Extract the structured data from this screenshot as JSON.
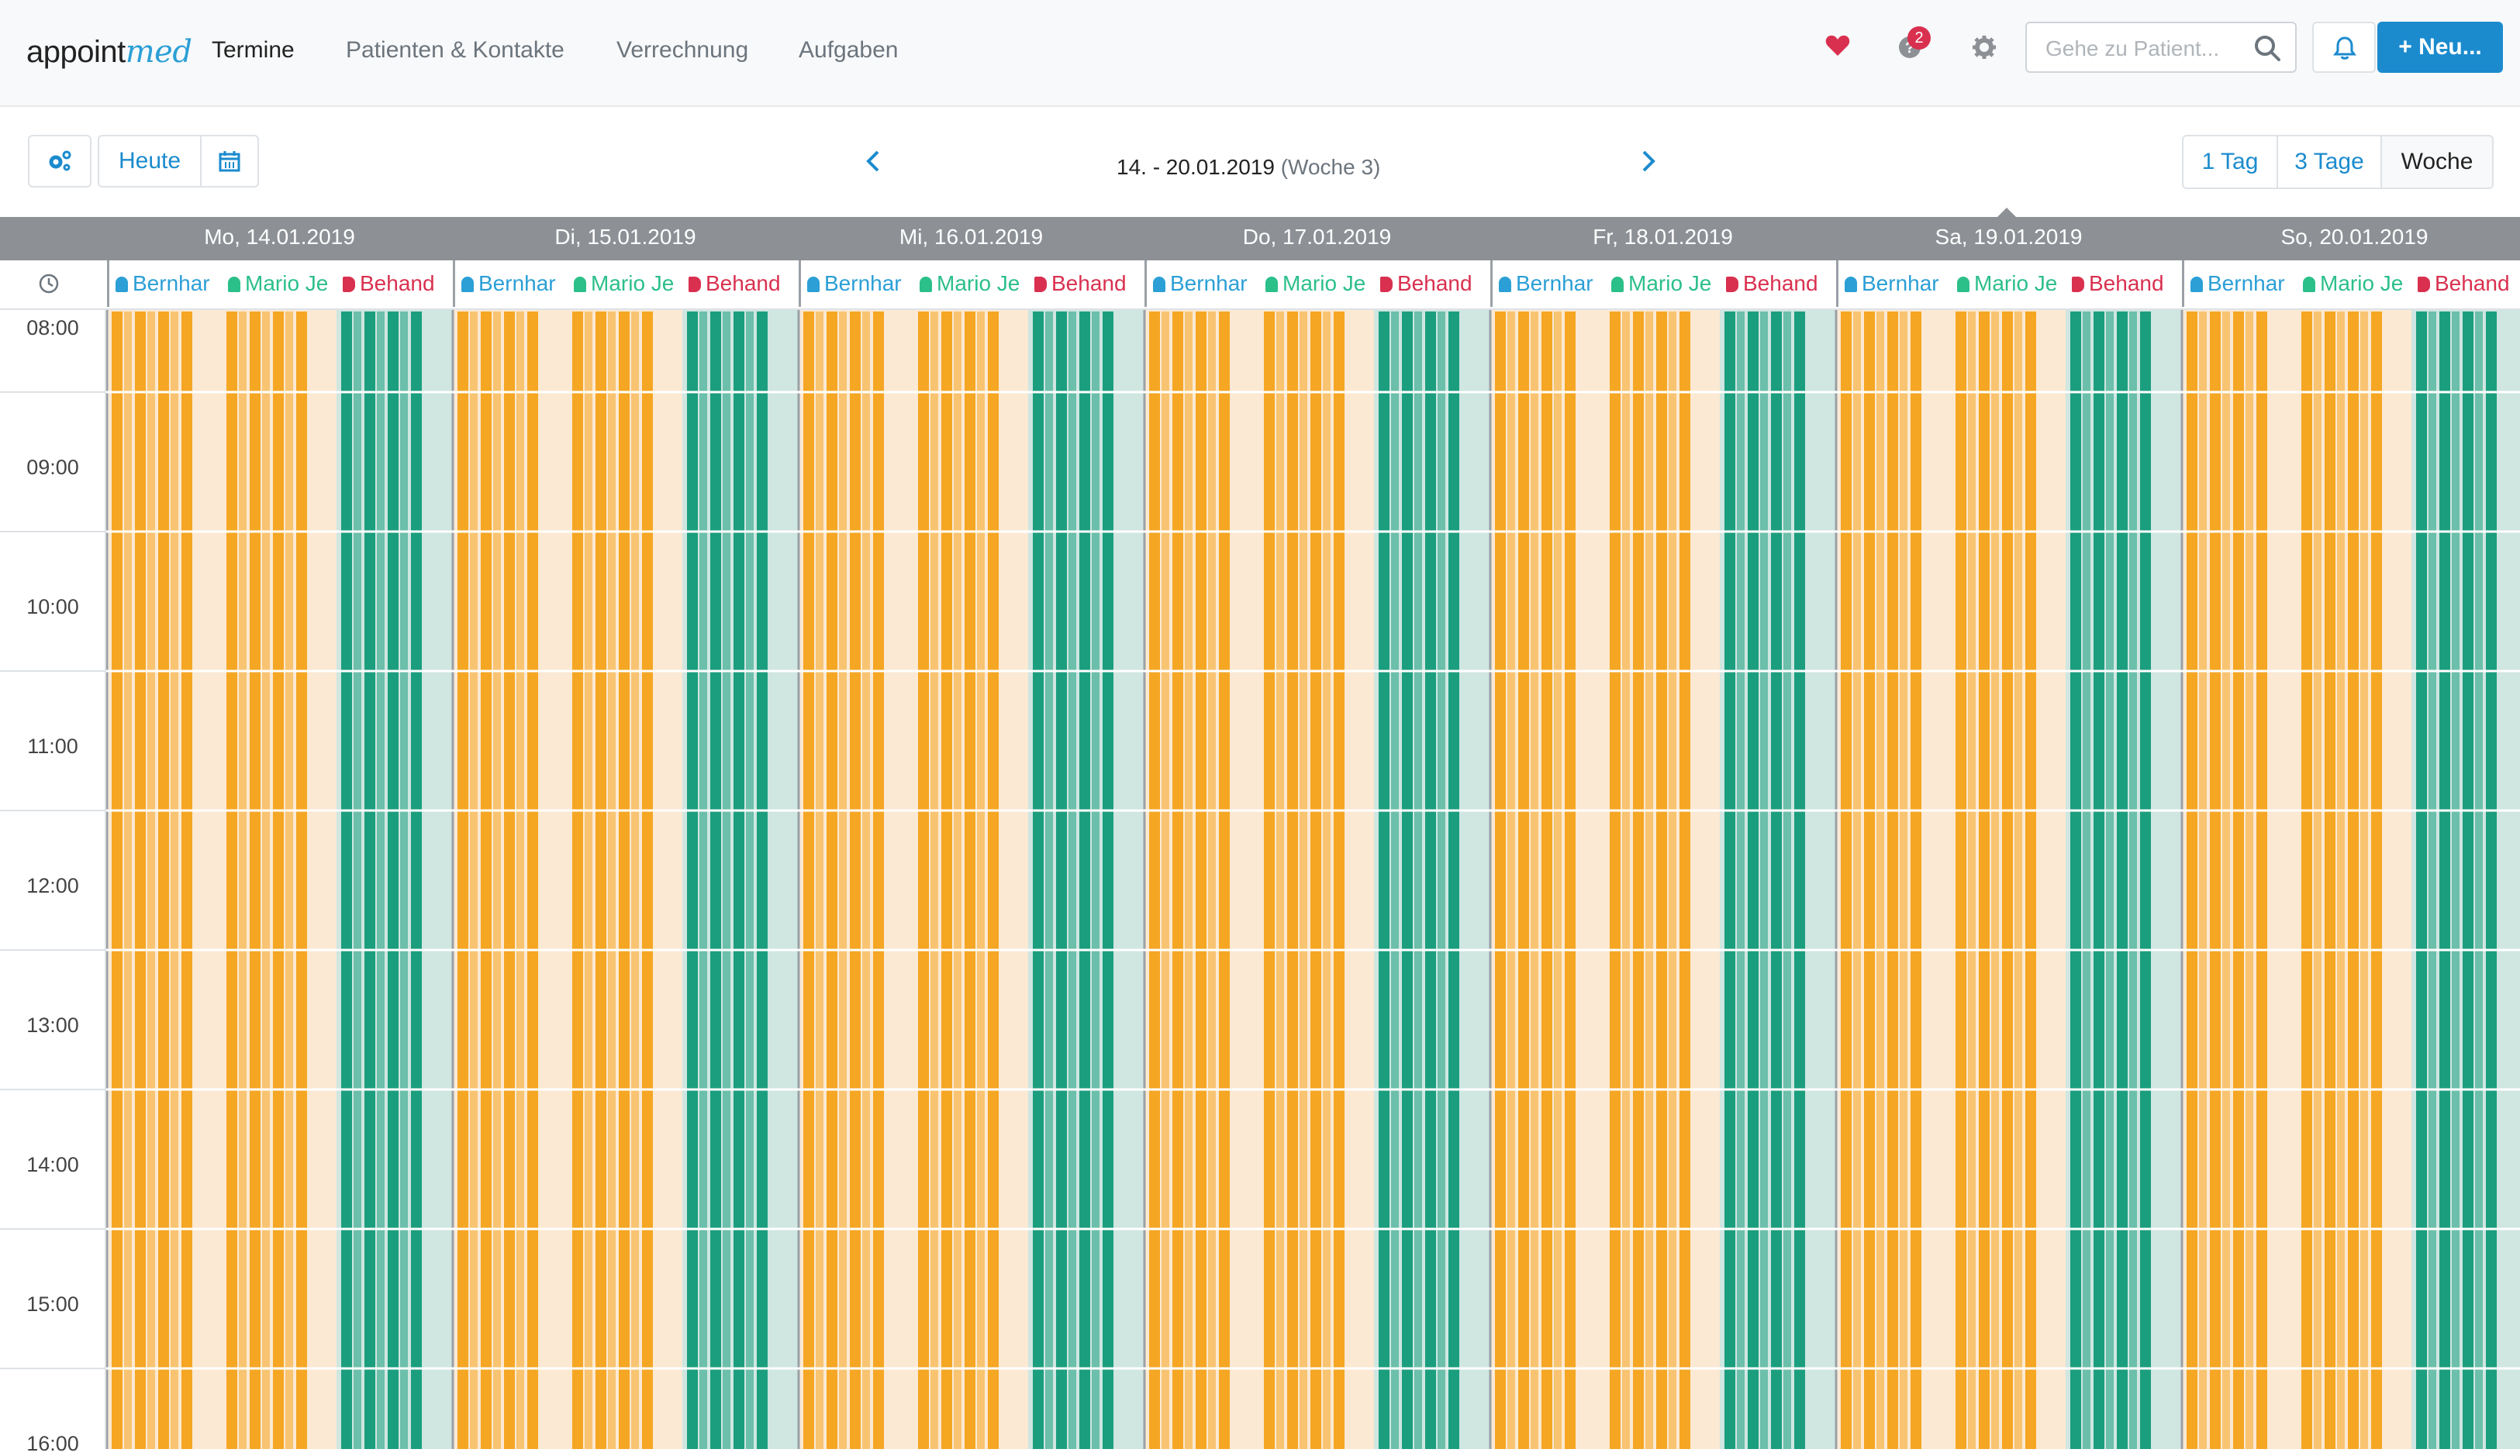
{
  "app": {
    "logo_main": "appoint",
    "logo_accent": "med"
  },
  "nav": {
    "items": [
      {
        "label": "Termine",
        "active": true
      },
      {
        "label": "Patienten & Kontakte",
        "active": false
      },
      {
        "label": "Verrechnung",
        "active": false
      },
      {
        "label": "Aufgaben",
        "active": false
      }
    ]
  },
  "header": {
    "notification_count": "2",
    "search_placeholder": "Gehe zu Patient...",
    "new_button": "+ Neu..."
  },
  "toolbar": {
    "today": "Heute",
    "range": "14. - 20.01.2019",
    "week": "(Woche 3)",
    "views": [
      {
        "label": "1 Tag",
        "active": false
      },
      {
        "label": "3 Tage",
        "active": false
      },
      {
        "label": "Woche",
        "active": true
      }
    ]
  },
  "days": [
    {
      "label": "Mo, 14.01.2019"
    },
    {
      "label": "Di, 15.01.2019"
    },
    {
      "label": "Mi, 16.01.2019"
    },
    {
      "label": "Do, 17.01.2019"
    },
    {
      "label": "Fr, 18.01.2019"
    },
    {
      "label": "Sa, 19.01.2019"
    },
    {
      "label": "So, 20.01.2019"
    }
  ],
  "resources": [
    {
      "label": "Bernhar",
      "icon": "user-md-icon",
      "color": "#2b9fd6"
    },
    {
      "label": "Mario Je",
      "icon": "user-md-icon",
      "color": "#2bbf8a"
    },
    {
      "label": "Behand",
      "icon": "tags-icon",
      "color": "#d9304f"
    }
  ],
  "times": [
    "08:00",
    "09:00",
    "10:00",
    "11:00",
    "12:00",
    "13:00",
    "14:00",
    "15:00",
    "16:00"
  ],
  "colors": {
    "orange": "#f5a623",
    "teal": "#1b9e7e",
    "orange_bg": "#fbe9d3",
    "teal_bg": "#cfe6e1",
    "accent": "#1b8bce",
    "heart": "#d9304f"
  }
}
